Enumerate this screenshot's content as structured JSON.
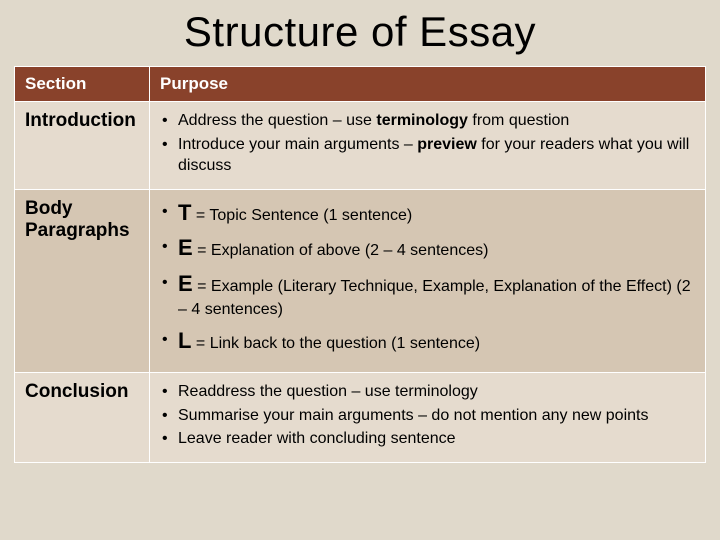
{
  "title": "Structure of Essay",
  "headers": {
    "section": "Section",
    "purpose": "Purpose"
  },
  "rows": {
    "intro": {
      "name": "Introduction",
      "b1_pre": "Address the question – use ",
      "b1_bold": "terminology",
      "b1_post": " from question",
      "b2_pre": "Introduce your main arguments – ",
      "b2_bold": "preview",
      "b2_post": " for your readers what you will discuss"
    },
    "body": {
      "name": "Body Paragraphs",
      "t_letter": "T",
      "t_text": " = Topic Sentence (1 sentence)",
      "e1_letter": "E",
      "e1_text": " = Explanation of above (2 – 4 sentences)",
      "e2_letter": "E",
      "e2_text": " = Example (Literary Technique, Example, Explanation of the Effect) (2 – 4 sentences)",
      "l_letter": "L",
      "l_text": " = Link back to the question (1 sentence)"
    },
    "conclusion": {
      "name": "Conclusion",
      "b1": "Readdress the question – use terminology",
      "b2": "Summarise your main arguments – do not mention any new points",
      "b3": "Leave reader with concluding sentence"
    }
  },
  "colors": {
    "background": "#e0d9cb",
    "header_bg": "#89422b",
    "row_even": "#e5dbce",
    "row_odd": "#d5c6b3",
    "border": "#ffffff"
  }
}
